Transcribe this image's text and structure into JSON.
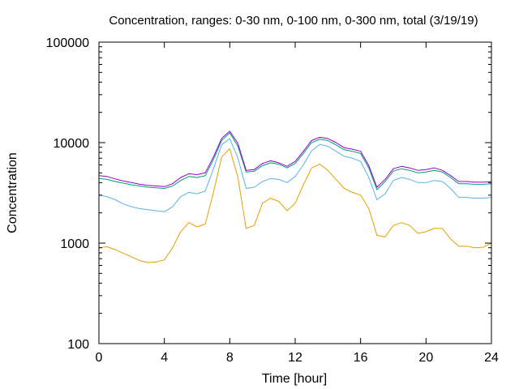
{
  "chart_data": {
    "type": "line",
    "title": "Concentration, ranges: 0-30 nm, 0-100 nm, 0-300 nm, total (3/19/19)",
    "xlabel": "Time [hour]",
    "ylabel": "Concentration",
    "xlim": [
      0,
      24
    ],
    "ylim": [
      100,
      100000
    ],
    "yscale": "log",
    "grid": false,
    "xticks": [
      0,
      4,
      8,
      12,
      16,
      20,
      24
    ],
    "xtick_labels": [
      "0",
      "4",
      "8",
      "12",
      "16",
      "20",
      "24"
    ],
    "yticks": [
      100,
      1000,
      10000,
      100000
    ],
    "ytick_labels": [
      "100",
      "1000",
      "10000",
      "100000"
    ],
    "x": [
      0,
      0.5,
      1,
      1.5,
      2,
      2.5,
      3,
      3.5,
      4,
      4.5,
      5,
      5.5,
      6,
      6.5,
      7,
      7.5,
      8,
      8.5,
      9,
      9.5,
      10,
      10.5,
      11,
      11.5,
      12,
      12.5,
      13,
      13.5,
      14,
      14.5,
      15,
      15.5,
      16,
      16.5,
      17,
      17.5,
      18,
      18.5,
      19,
      19.5,
      20,
      20.5,
      21,
      21.5,
      22,
      22.5,
      23,
      23.5,
      24
    ],
    "series": [
      {
        "color": "#e69f00",
        "values": [
          900,
          920,
          860,
          790,
          730,
          670,
          640,
          650,
          680,
          900,
          1300,
          1600,
          1450,
          1550,
          3200,
          7200,
          8700,
          4500,
          1400,
          1500,
          2500,
          2800,
          2600,
          2100,
          2500,
          3800,
          5600,
          6100,
          5300,
          4300,
          3500,
          3200,
          3000,
          2200,
          1200,
          1150,
          1500,
          1600,
          1500,
          1250,
          1300,
          1400,
          1400,
          1100,
          930,
          930,
          900,
          910,
          1000
        ]
      },
      {
        "color": "#56b4e9",
        "values": [
          3000,
          2900,
          2700,
          2450,
          2300,
          2200,
          2150,
          2100,
          2050,
          2300,
          2900,
          3200,
          3100,
          3300,
          5500,
          9500,
          11000,
          7000,
          3500,
          3600,
          4100,
          4400,
          4300,
          4000,
          4600,
          6000,
          8300,
          9600,
          9200,
          8200,
          7300,
          7000,
          6500,
          4500,
          2700,
          3100,
          4200,
          4500,
          4300,
          4000,
          4000,
          4200,
          4100,
          3500,
          2850,
          2850,
          2800,
          2800,
          2850
        ]
      },
      {
        "color": "#009e73",
        "values": [
          4400,
          4300,
          4100,
          3950,
          3800,
          3700,
          3600,
          3550,
          3500,
          3700,
          4200,
          4600,
          4500,
          4700,
          6800,
          10500,
          12500,
          9200,
          5100,
          5200,
          5900,
          6300,
          6100,
          5600,
          6200,
          7800,
          10000,
          10800,
          10500,
          9500,
          8500,
          8200,
          7800,
          5600,
          3400,
          4100,
          5200,
          5500,
          5300,
          5000,
          5100,
          5300,
          5100,
          4500,
          3900,
          3900,
          3850,
          3850,
          3900
        ]
      },
      {
        "color": "#9400d3",
        "values": [
          4700,
          4600,
          4350,
          4150,
          4000,
          3850,
          3750,
          3700,
          3650,
          3900,
          4500,
          4900,
          4800,
          5000,
          7200,
          11000,
          13000,
          9800,
          5300,
          5400,
          6200,
          6600,
          6300,
          5800,
          6500,
          8200,
          10500,
          11300,
          11000,
          10000,
          8900,
          8600,
          8200,
          5900,
          3600,
          4300,
          5500,
          5800,
          5600,
          5300,
          5400,
          5600,
          5300,
          4700,
          4100,
          4100,
          4050,
          4050,
          4100
        ]
      }
    ]
  }
}
